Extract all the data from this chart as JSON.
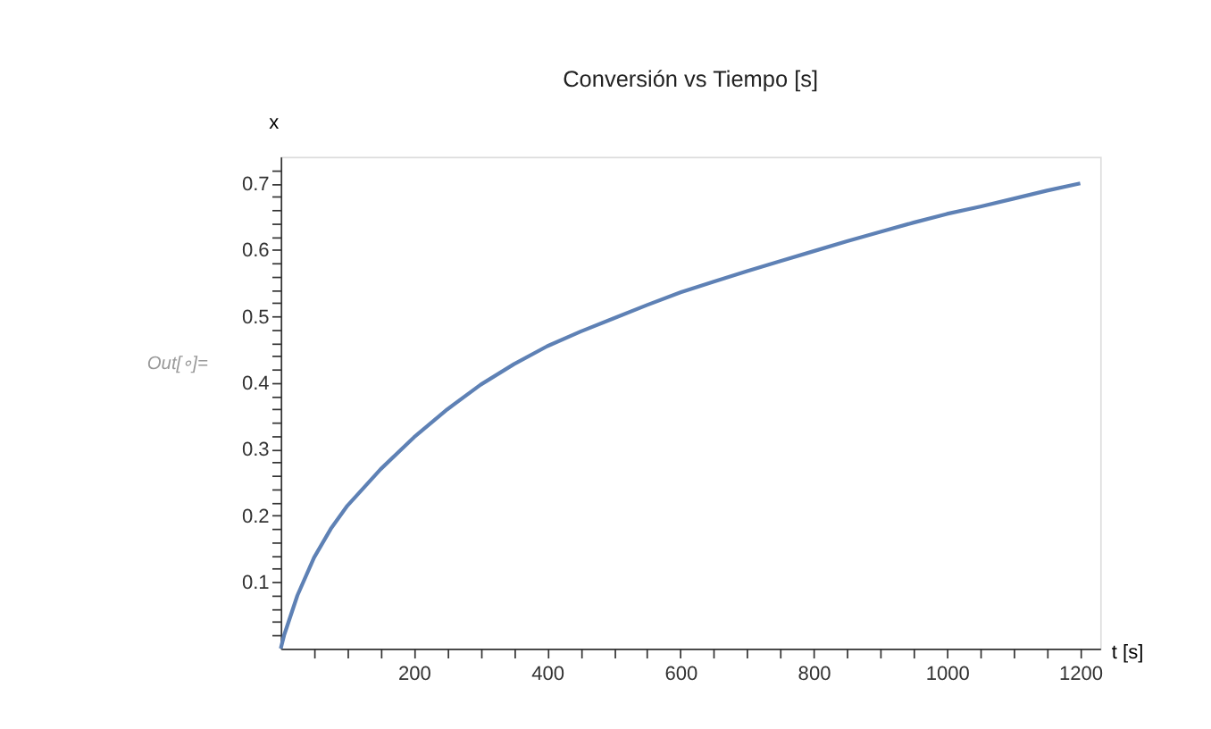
{
  "chart_data": {
    "type": "line",
    "title": "Conversión vs Tiempo [s]",
    "xlabel": "t [s]",
    "ylabel": "x",
    "x": [
      0,
      5,
      10,
      25,
      50,
      75,
      100,
      150,
      200,
      250,
      300,
      350,
      400,
      450,
      500,
      550,
      600,
      650,
      700,
      750,
      800,
      850,
      900,
      950,
      1000,
      1050,
      1100,
      1150,
      1200
    ],
    "series": [
      {
        "color": "#5e81b5",
        "values": [
          0,
          0.02,
          0.035,
          0.08,
          0.137,
          0.18,
          0.215,
          0.27,
          0.318,
          0.36,
          0.397,
          0.428,
          0.455,
          0.477,
          0.497,
          0.517,
          0.536,
          0.552,
          0.568,
          0.583,
          0.598,
          0.613,
          0.627,
          0.641,
          0.654,
          0.665,
          0.677,
          0.689,
          0.7
        ]
      }
    ],
    "xlim": [
      0,
      1230
    ],
    "ylim": [
      0,
      0.74
    ],
    "xticks": [
      {
        "value": 50,
        "label": null
      },
      {
        "value": 100,
        "label": null
      },
      {
        "value": 150,
        "label": null
      },
      200,
      {
        "value": 250,
        "label": null
      },
      {
        "value": 300,
        "label": null
      },
      {
        "value": 350,
        "label": null
      },
      400,
      {
        "value": 450,
        "label": null
      },
      {
        "value": 500,
        "label": null
      },
      {
        "value": 550,
        "label": null
      },
      600,
      {
        "value": 650,
        "label": null
      },
      {
        "value": 700,
        "label": null
      },
      {
        "value": 750,
        "label": null
      },
      800,
      {
        "value": 850,
        "label": null
      },
      {
        "value": 900,
        "label": null
      },
      {
        "value": 950,
        "label": null
      },
      1000,
      {
        "value": 1050,
        "label": null
      },
      {
        "value": 1100,
        "label": null
      },
      {
        "value": 1150,
        "label": null
      },
      1200
    ],
    "yticks": [
      {
        "value": 0.02,
        "label": null
      },
      {
        "value": 0.04,
        "label": null
      },
      {
        "value": 0.06,
        "label": null
      },
      {
        "value": 0.08,
        "label": null
      },
      0.1,
      {
        "value": 0.12,
        "label": null
      },
      {
        "value": 0.14,
        "label": null
      },
      {
        "value": 0.16,
        "label": null
      },
      {
        "value": 0.18,
        "label": null
      },
      0.2,
      {
        "value": 0.22,
        "label": null
      },
      {
        "value": 0.24,
        "label": null
      },
      {
        "value": 0.26,
        "label": null
      },
      {
        "value": 0.28,
        "label": null
      },
      0.3,
      {
        "value": 0.32,
        "label": null
      },
      {
        "value": 0.34,
        "label": null
      },
      {
        "value": 0.36,
        "label": null
      },
      {
        "value": 0.38,
        "label": null
      },
      0.4,
      {
        "value": 0.42,
        "label": null
      },
      {
        "value": 0.44,
        "label": null
      },
      {
        "value": 0.46,
        "label": null
      },
      {
        "value": 0.48,
        "label": null
      },
      0.5,
      {
        "value": 0.52,
        "label": null
      },
      {
        "value": 0.54,
        "label": null
      },
      {
        "value": 0.56,
        "label": null
      },
      {
        "value": 0.58,
        "label": null
      },
      0.6,
      {
        "value": 0.62,
        "label": null
      },
      {
        "value": 0.64,
        "label": null
      },
      {
        "value": 0.66,
        "label": null
      },
      {
        "value": 0.68,
        "label": null
      },
      0.7,
      {
        "value": 0.72,
        "label": null
      }
    ],
    "grid": false,
    "marker": "none",
    "line_style": "solid",
    "annotations": [
      "Out[∘]="
    ]
  }
}
